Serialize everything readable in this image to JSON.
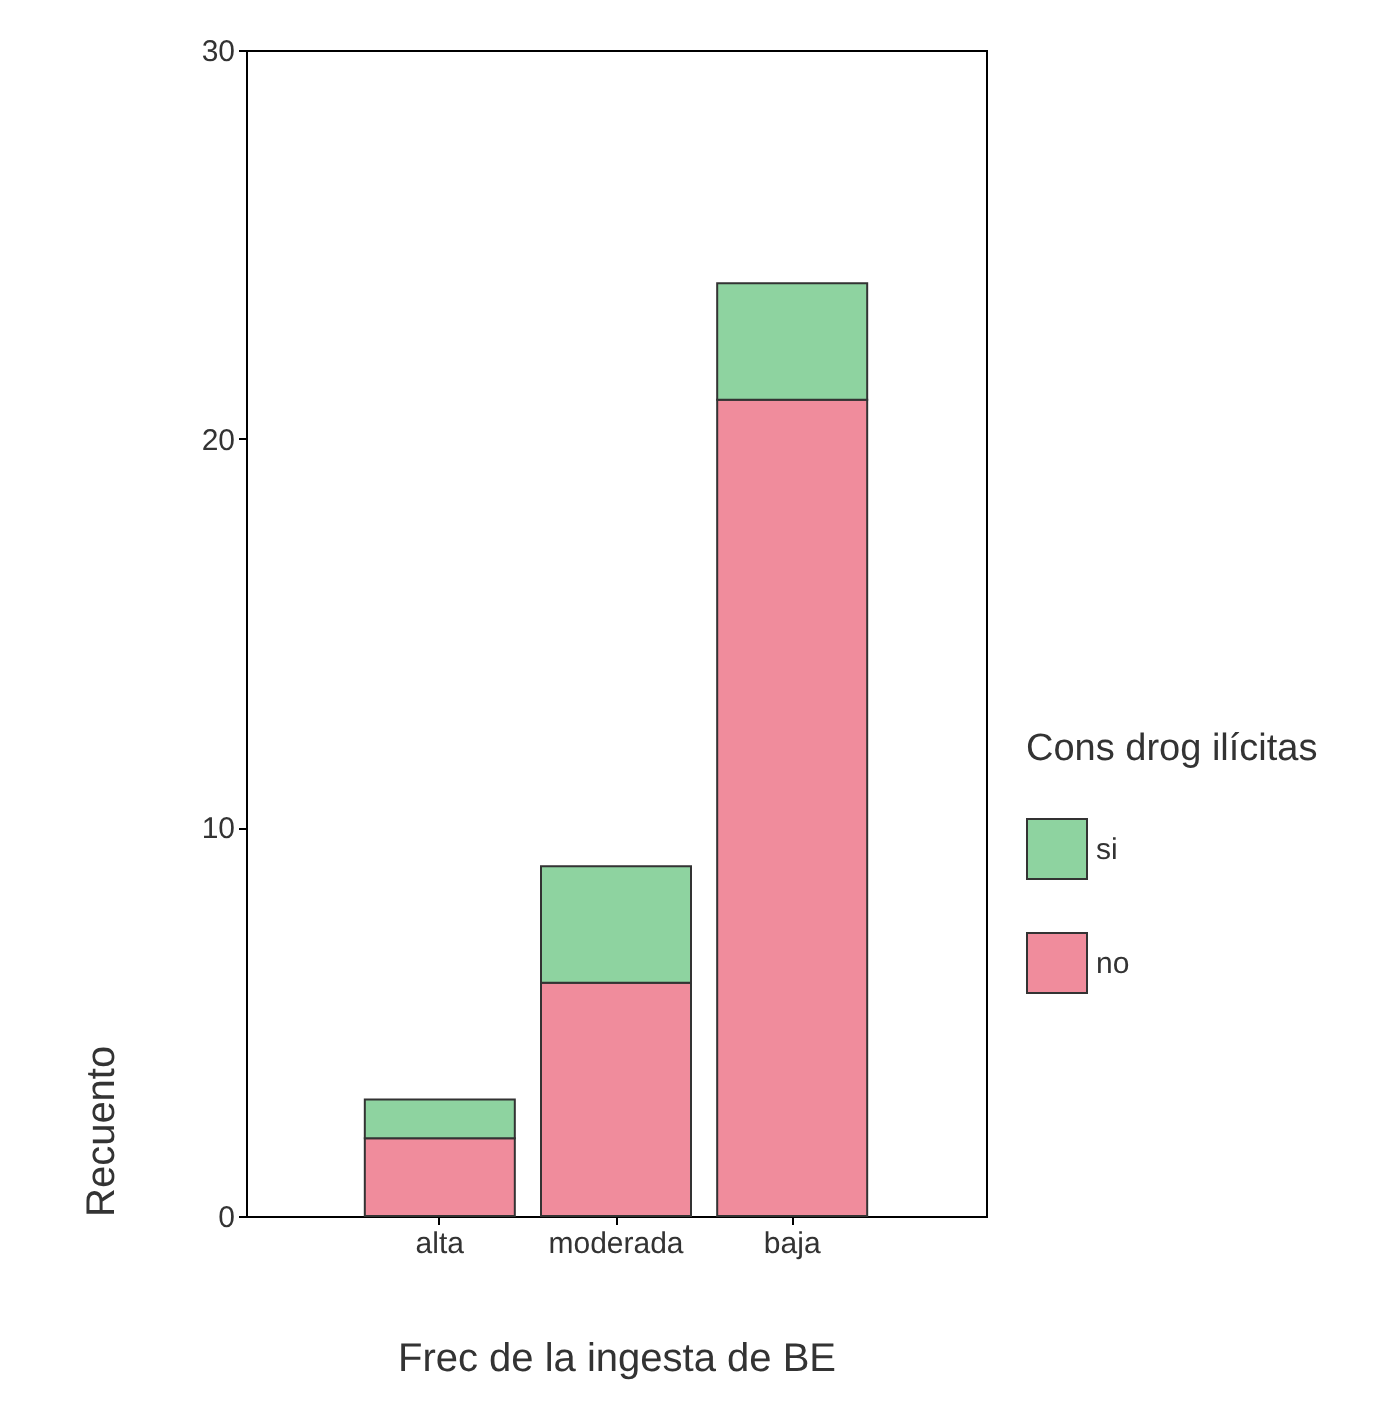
{
  "chart_data": {
    "type": "bar",
    "stacked": true,
    "xlabel": "Frec de la ingesta de BE",
    "ylabel": "Recuento",
    "legend_title": "Cons drog ilícitas",
    "legend": "right",
    "categories": [
      "alta",
      "moderada",
      "baja"
    ],
    "series": [
      {
        "name": "no",
        "color": "#f08c9c",
        "values": [
          2,
          6,
          21
        ]
      },
      {
        "name": "si",
        "color": "#8ed3a0",
        "values": [
          1,
          3,
          3
        ]
      }
    ],
    "ylim": [
      0,
      30
    ],
    "yticks": [
      0,
      10,
      20,
      30
    ],
    "grid": false
  }
}
